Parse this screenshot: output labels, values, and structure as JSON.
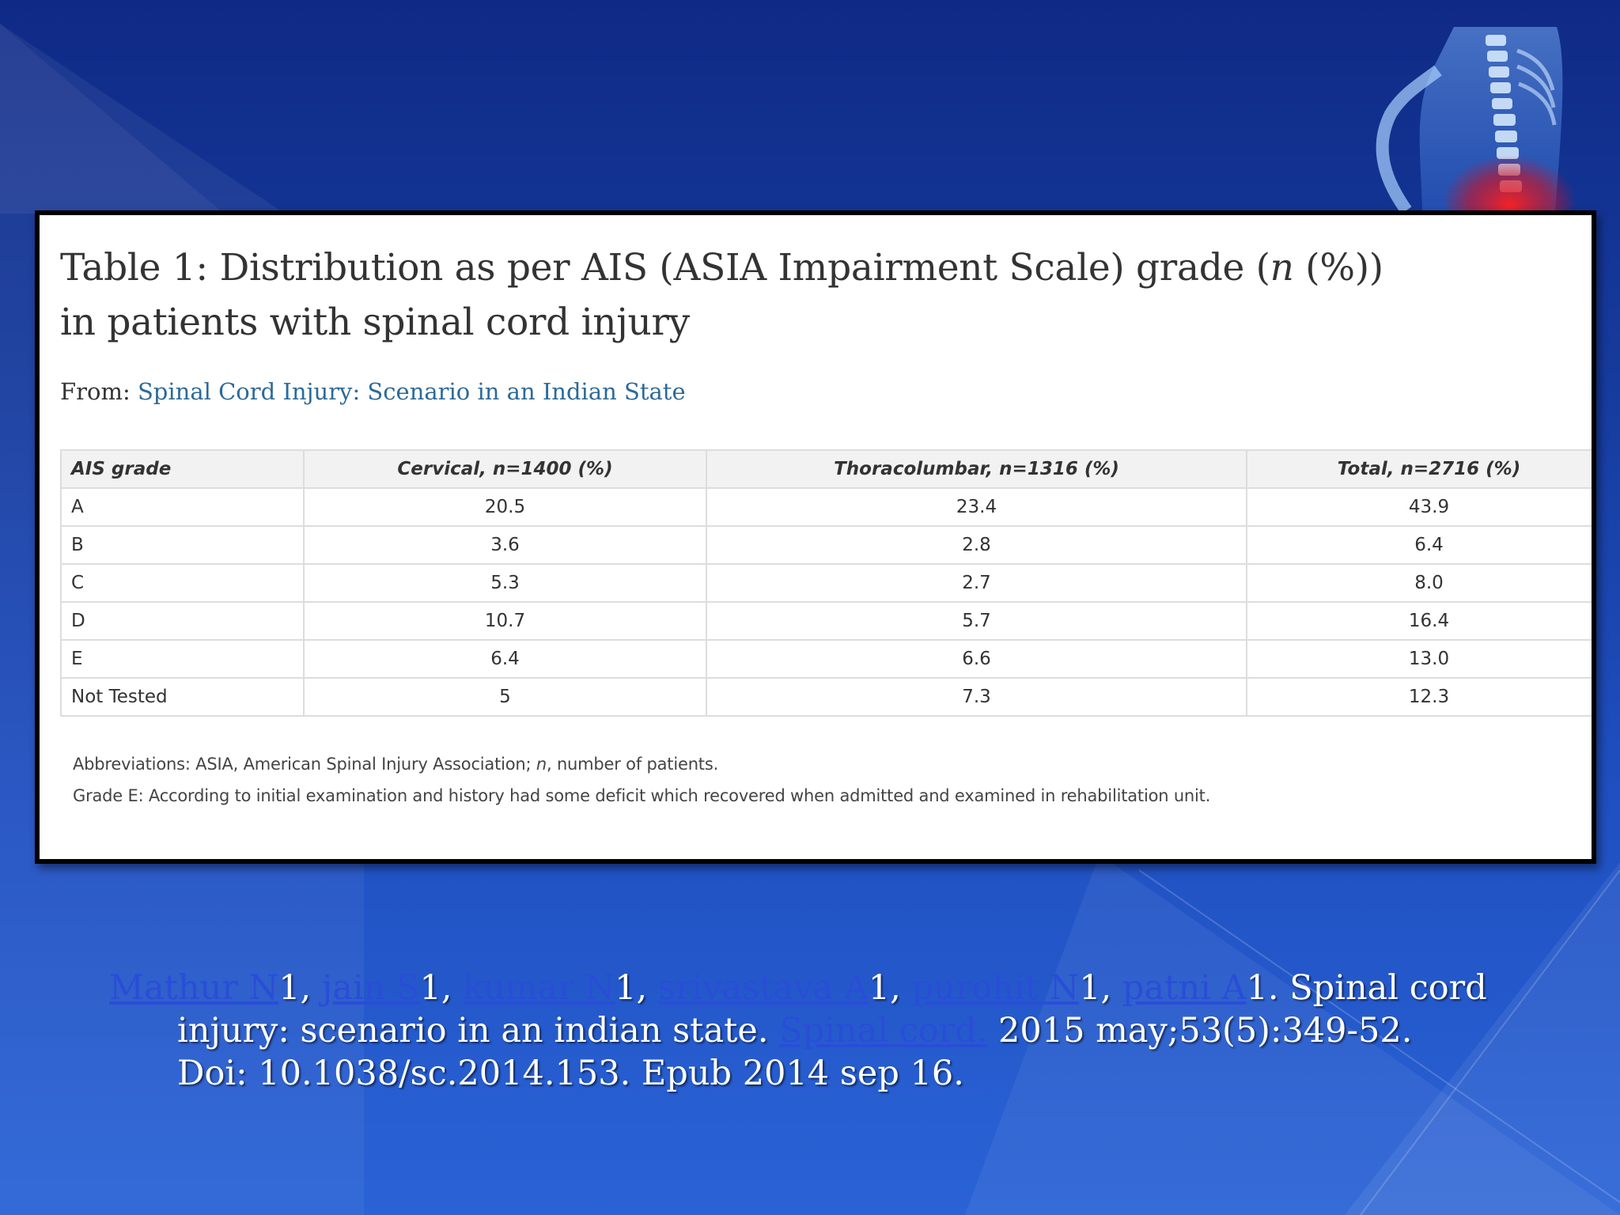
{
  "table": {
    "title_prefix": "Table 1: Distribution as per AIS (ASIA Impairment Scale) grade (",
    "title_italic": "n",
    "title_suffix": " (%)) in patients with spinal cord injury",
    "from_label": "From: ",
    "from_link": "Spinal Cord Injury: Scenario in an Indian State",
    "headers": [
      "AIS grade",
      "Cervical, n=1400 (%)",
      "Thoracolumbar, n=1316 (%)",
      "Total, n=2716 (%)"
    ],
    "rows": [
      [
        "A",
        "20.5",
        "23.4",
        "43.9"
      ],
      [
        "B",
        "3.6",
        "2.8",
        "6.4"
      ],
      [
        "C",
        "5.3",
        "2.7",
        "8.0"
      ],
      [
        "D",
        "10.7",
        "5.7",
        "16.4"
      ],
      [
        "E",
        "6.4",
        "6.6",
        "13.0"
      ],
      [
        "Not Tested",
        "5",
        "7.3",
        "12.3"
      ]
    ],
    "footnote1_prefix": "Abbreviations: ASIA, American Spinal Injury Association; ",
    "footnote1_italic": "n",
    "footnote1_suffix": ", number of patients.",
    "footnote2": "Grade E: According to initial examination and history had some deficit which recovered when admitted and examined in rehabilitation unit."
  },
  "citation": {
    "authors": [
      {
        "name": "Mathur N",
        "sup": "1"
      },
      {
        "name": "jain S",
        "sup": "1"
      },
      {
        "name": "kumar N",
        "sup": "1"
      },
      {
        "name": "srivastava A",
        "sup": "1"
      },
      {
        "name": "purohit N",
        "sup": "1"
      },
      {
        "name": "patni A",
        "sup": "1"
      }
    ],
    "title_part1": ". Spinal cord",
    "title_part2": "injury: scenario in an indian state. ",
    "journal": "Spinal cord.",
    "details": " 2015 may;53(5):349-52.",
    "doi_line": "Doi: 10.1038/sc.2014.153. Epub 2014 sep 16."
  },
  "decor": {
    "image": "spine-xray-image"
  }
}
